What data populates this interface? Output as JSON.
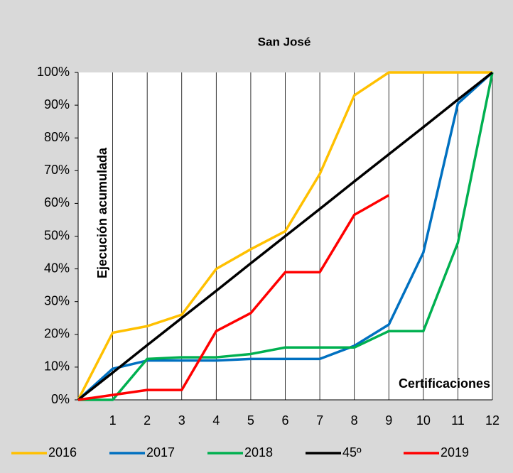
{
  "chart_data": {
    "type": "line",
    "title": "San José",
    "x_label": "Certificaciones",
    "y_label": "Ejecución acumulada",
    "x": [
      0,
      1,
      2,
      3,
      4,
      5,
      6,
      7,
      8,
      9,
      10,
      11,
      12
    ],
    "series": [
      {
        "name": "2016",
        "color": "#ffc000",
        "values": [
          0,
          20.5,
          22.5,
          26,
          40,
          46,
          51.5,
          69,
          93,
          100,
          100,
          100,
          100
        ]
      },
      {
        "name": "2017",
        "color": "#0070c0",
        "values": [
          0,
          9.5,
          12,
          12,
          12,
          12.5,
          12.5,
          12.5,
          16.5,
          23,
          45,
          90.5,
          100
        ]
      },
      {
        "name": "2018",
        "color": "#00b050",
        "values": [
          0,
          0,
          12.5,
          13,
          13,
          14,
          16,
          16,
          16,
          21,
          21,
          48,
          100
        ]
      },
      {
        "name": "45º",
        "color": "#000000",
        "values": [
          0,
          8.3,
          16.7,
          25,
          33.3,
          41.7,
          50,
          58.3,
          66.7,
          75,
          83.3,
          91.7,
          100
        ]
      },
      {
        "name": "2019",
        "color": "#ff0000",
        "values": [
          0,
          1.5,
          3,
          3,
          21,
          26.5,
          39,
          39,
          56.5,
          62.5,
          null,
          null,
          null
        ]
      }
    ],
    "xlim": [
      0,
      12
    ],
    "xticks": [
      1,
      2,
      3,
      4,
      5,
      6,
      7,
      8,
      9,
      10,
      11,
      12
    ],
    "ylim": [
      0,
      100
    ],
    "yticks": [
      {
        "value": 0,
        "label": "0%"
      },
      {
        "value": 10,
        "label": "10%"
      },
      {
        "value": 20,
        "label": "20%"
      },
      {
        "value": 30,
        "label": "30%"
      },
      {
        "value": 40,
        "label": "40%"
      },
      {
        "value": 50,
        "label": "50%"
      },
      {
        "value": 60,
        "label": "60%"
      },
      {
        "value": 70,
        "label": "70%"
      },
      {
        "value": 80,
        "label": "80%"
      },
      {
        "value": 90,
        "label": "90%"
      },
      {
        "value": 100,
        "label": "100%"
      }
    ],
    "grid": "x",
    "legend": "bottom"
  }
}
